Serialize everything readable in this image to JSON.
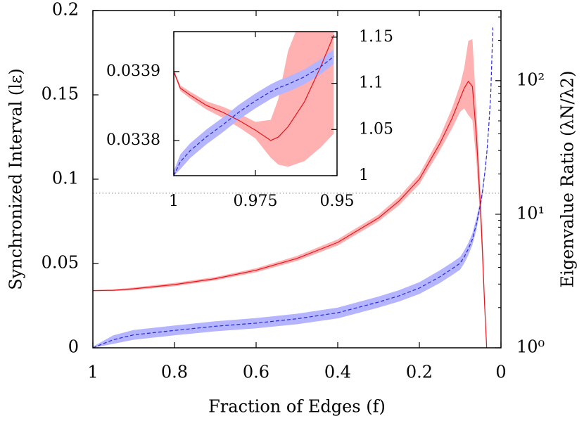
{
  "chart_data": [
    {
      "type": "line",
      "xlabel": "Fraction of Edges (f)",
      "ylabel": "Synchronized Interval (lε)",
      "y2label": "Eigenvalue Ratio (λN/λ2)",
      "xlim": [
        1,
        0
      ],
      "xticks": [
        1,
        0.8,
        0.6,
        0.4,
        0.2,
        0
      ],
      "ylim": [
        0,
        0.2
      ],
      "yticks": [
        0,
        0.05,
        0.1,
        0.15,
        0.2
      ],
      "y2lim": [
        1,
        335
      ],
      "y2scale": "log",
      "y2ticks": [
        {
          "value": 1,
          "label": "10⁰"
        },
        {
          "value": 10,
          "label": "10¹"
        },
        {
          "value": 100,
          "label": "10²"
        }
      ],
      "y2minorticks": [
        2,
        3,
        4,
        5,
        6,
        7,
        8,
        9,
        20,
        30,
        40,
        50,
        60,
        70,
        80,
        90,
        200,
        300
      ],
      "hline": 0.0917,
      "x": [
        1,
        0.95,
        0.9,
        0.8,
        0.7,
        0.6,
        0.5,
        0.4,
        0.3,
        0.25,
        0.2,
        0.15,
        0.12,
        0.1,
        0.09,
        0.08,
        0.07,
        0.06,
        0.05,
        0.045,
        0.04,
        0.035,
        0.03,
        0.025,
        0.02
      ],
      "series": [
        {
          "color": "#e8141c",
          "band_color": "#ffb0b0",
          "dashed": false,
          "values": [
            0.0339,
            0.0341,
            0.035,
            0.0375,
            0.041,
            0.046,
            0.053,
            0.0625,
            0.077,
            0.087,
            0.1,
            0.121,
            0.136,
            0.148,
            0.154,
            0.158,
            0.155,
            0.125,
            0.082,
            0.055,
            0.025,
            0,
            null,
            null,
            null
          ],
          "lower": [
            0.0336,
            0.0336,
            0.0342,
            0.0365,
            0.04,
            0.0448,
            0.0515,
            0.0607,
            0.075,
            0.0845,
            0.097,
            0.117,
            0.13,
            0.14,
            0.142,
            0.138,
            0.135,
            0.11,
            0.072,
            0.047,
            0.02,
            0,
            null,
            null,
            null
          ],
          "upper": [
            0.0342,
            0.0346,
            0.0358,
            0.0385,
            0.042,
            0.0472,
            0.0545,
            0.0643,
            0.079,
            0.0895,
            0.103,
            0.125,
            0.142,
            0.156,
            0.166,
            0.182,
            0.183,
            0.14,
            0.092,
            0.063,
            0.03,
            0,
            null,
            null,
            null
          ]
        },
        {
          "color": "#2828d8",
          "band_color": "#b4b4ff",
          "dashed": true,
          "axis": "y2",
          "values": [
            1,
            1.15,
            1.25,
            1.35,
            1.45,
            1.53,
            1.65,
            1.83,
            2.2,
            2.45,
            2.8,
            3.4,
            3.9,
            4.3,
            4.8,
            5.5,
            6.5,
            8.5,
            12,
            15,
            20,
            28,
            45,
            80,
            250
          ],
          "lower": [
            1,
            1.07,
            1.15,
            1.24,
            1.33,
            1.4,
            1.5,
            1.66,
            2,
            2.22,
            2.53,
            3.05,
            3.5,
            3.85,
            4.3,
            4.95,
            5.9,
            7.7,
            11,
            14,
            19,
            27,
            44,
            79,
            249
          ],
          "upper": [
            1.02,
            1.24,
            1.36,
            1.47,
            1.58,
            1.67,
            1.8,
            2,
            2.42,
            2.7,
            3.1,
            3.8,
            4.35,
            4.8,
            5.35,
            6.1,
            7.2,
            9.4,
            13,
            16,
            21,
            29,
            46,
            81,
            251
          ]
        }
      ]
    },
    {
      "type": "line",
      "xlim": [
        1,
        0.95
      ],
      "xticks": [
        1,
        0.975,
        0.95
      ],
      "ylim": [
        0.033749,
        0.033958
      ],
      "yticks": [
        0.0338,
        0.0339
      ],
      "y2lim": [
        1,
        1.156
      ],
      "y2ticks": [
        1,
        1.05,
        1.1,
        1.15
      ],
      "x": [
        1,
        0.998,
        0.995,
        0.99,
        0.985,
        0.98,
        0.975,
        0.9703,
        0.968,
        0.965,
        0.96,
        0.955,
        0.951
      ],
      "series": [
        {
          "color": "#e8141c",
          "band_color": "#ffb0b0",
          "dashed": false,
          "values": [
            0.0339,
            0.033876,
            0.033866,
            0.033851,
            0.033841,
            0.033829,
            0.033815,
            0.0338,
            0.033805,
            0.03382,
            0.033856,
            0.033907,
            0.033953
          ],
          "lower": [
            0.033898,
            0.033872,
            0.033861,
            0.033845,
            0.033833,
            0.033819,
            0.033803,
            0.033775,
            0.033765,
            0.033762,
            0.03377,
            0.03379,
            0.03381
          ],
          "upper": [
            0.033902,
            0.03388,
            0.033871,
            0.033857,
            0.033849,
            0.033839,
            0.033827,
            0.03383,
            0.03386,
            0.03393,
            0.03399,
            0.034,
            0.034
          ]
        },
        {
          "color": "#2828d8",
          "band_color": "#b4b4ff",
          "dashed": true,
          "axis": "y2",
          "values": [
            1,
            1.015,
            1.027,
            1.042,
            1.055,
            1.069,
            1.081,
            1.091,
            1.095,
            1.099,
            1.107,
            1.118,
            1.129
          ],
          "lower": [
            1,
            1.007,
            1.019,
            1.034,
            1.047,
            1.061,
            1.073,
            1.083,
            1.087,
            1.091,
            1.099,
            1.11,
            1.121
          ],
          "upper": [
            1.005,
            1.023,
            1.035,
            1.05,
            1.063,
            1.077,
            1.089,
            1.099,
            1.103,
            1.107,
            1.115,
            1.126,
            1.137
          ]
        }
      ]
    }
  ]
}
